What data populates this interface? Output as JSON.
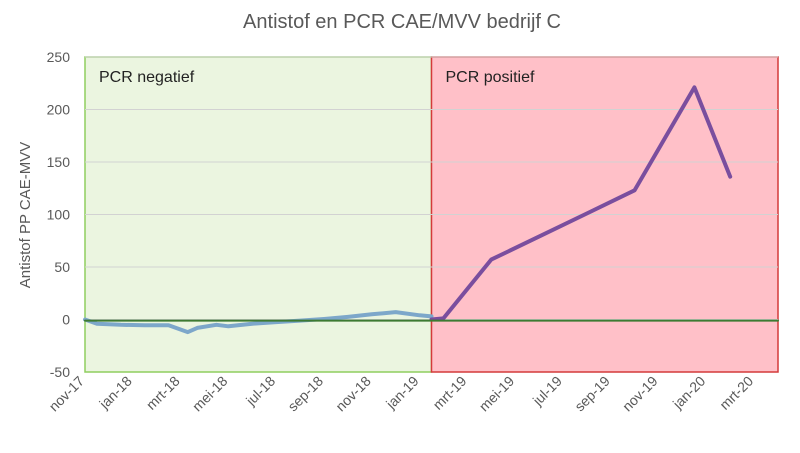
{
  "chart_data": {
    "type": "line",
    "title": "Antistof  en PCR CAE/MVV bedrijf C",
    "xlabel": "",
    "ylabel": "Antistof PP CAE-MVV",
    "ylim": [
      -50,
      250
    ],
    "yticks": [
      -50,
      0,
      50,
      100,
      150,
      200,
      250
    ],
    "x_tick_labels": [
      "nov-17",
      "jan-18",
      "mrt-18",
      "mei-18",
      "jul-18",
      "sep-18",
      "nov-18",
      "jan-19",
      "mrt-19",
      "mei-19",
      "jul-19",
      "sep-19",
      "nov-19",
      "jan-20",
      "mrt-20"
    ],
    "x_range_months": [
      0,
      29
    ],
    "grid": true,
    "regions": [
      {
        "label": "PCR negatief",
        "from_month": 0,
        "to_month": 14.5,
        "fill": "#ebf5e0",
        "stroke": "#8fce5f"
      },
      {
        "label": "PCR positief",
        "from_month": 14.5,
        "to_month": 29,
        "fill": "#ffc0c8",
        "stroke": "#d43a3a"
      }
    ],
    "series": [
      {
        "color": "#7da7ca",
        "points": [
          [
            0,
            0
          ],
          [
            0.5,
            -4
          ],
          [
            1.5,
            -5
          ],
          [
            2.5,
            -5.5
          ],
          [
            3.5,
            -5.5
          ],
          [
            4.3,
            -12
          ],
          [
            4.7,
            -8
          ],
          [
            5.5,
            -5
          ],
          [
            6,
            -6.5
          ],
          [
            7,
            -4
          ],
          [
            8,
            -2.5
          ],
          [
            9,
            -1
          ],
          [
            10,
            0.5
          ],
          [
            11,
            2.5
          ],
          [
            12,
            5
          ],
          [
            13,
            7
          ],
          [
            14,
            4
          ],
          [
            14.5,
            3
          ]
        ]
      },
      {
        "color": "#7a4e9e",
        "points": [
          [
            14.5,
            0
          ],
          [
            15,
            1
          ],
          [
            17,
            57
          ],
          [
            19,
            79
          ],
          [
            21,
            101
          ],
          [
            23,
            123
          ],
          [
            25.5,
            221
          ],
          [
            27,
            136
          ]
        ]
      },
      {
        "color": "#3d7a32",
        "points": [
          [
            0,
            -1
          ],
          [
            29,
            -1
          ]
        ]
      }
    ]
  }
}
